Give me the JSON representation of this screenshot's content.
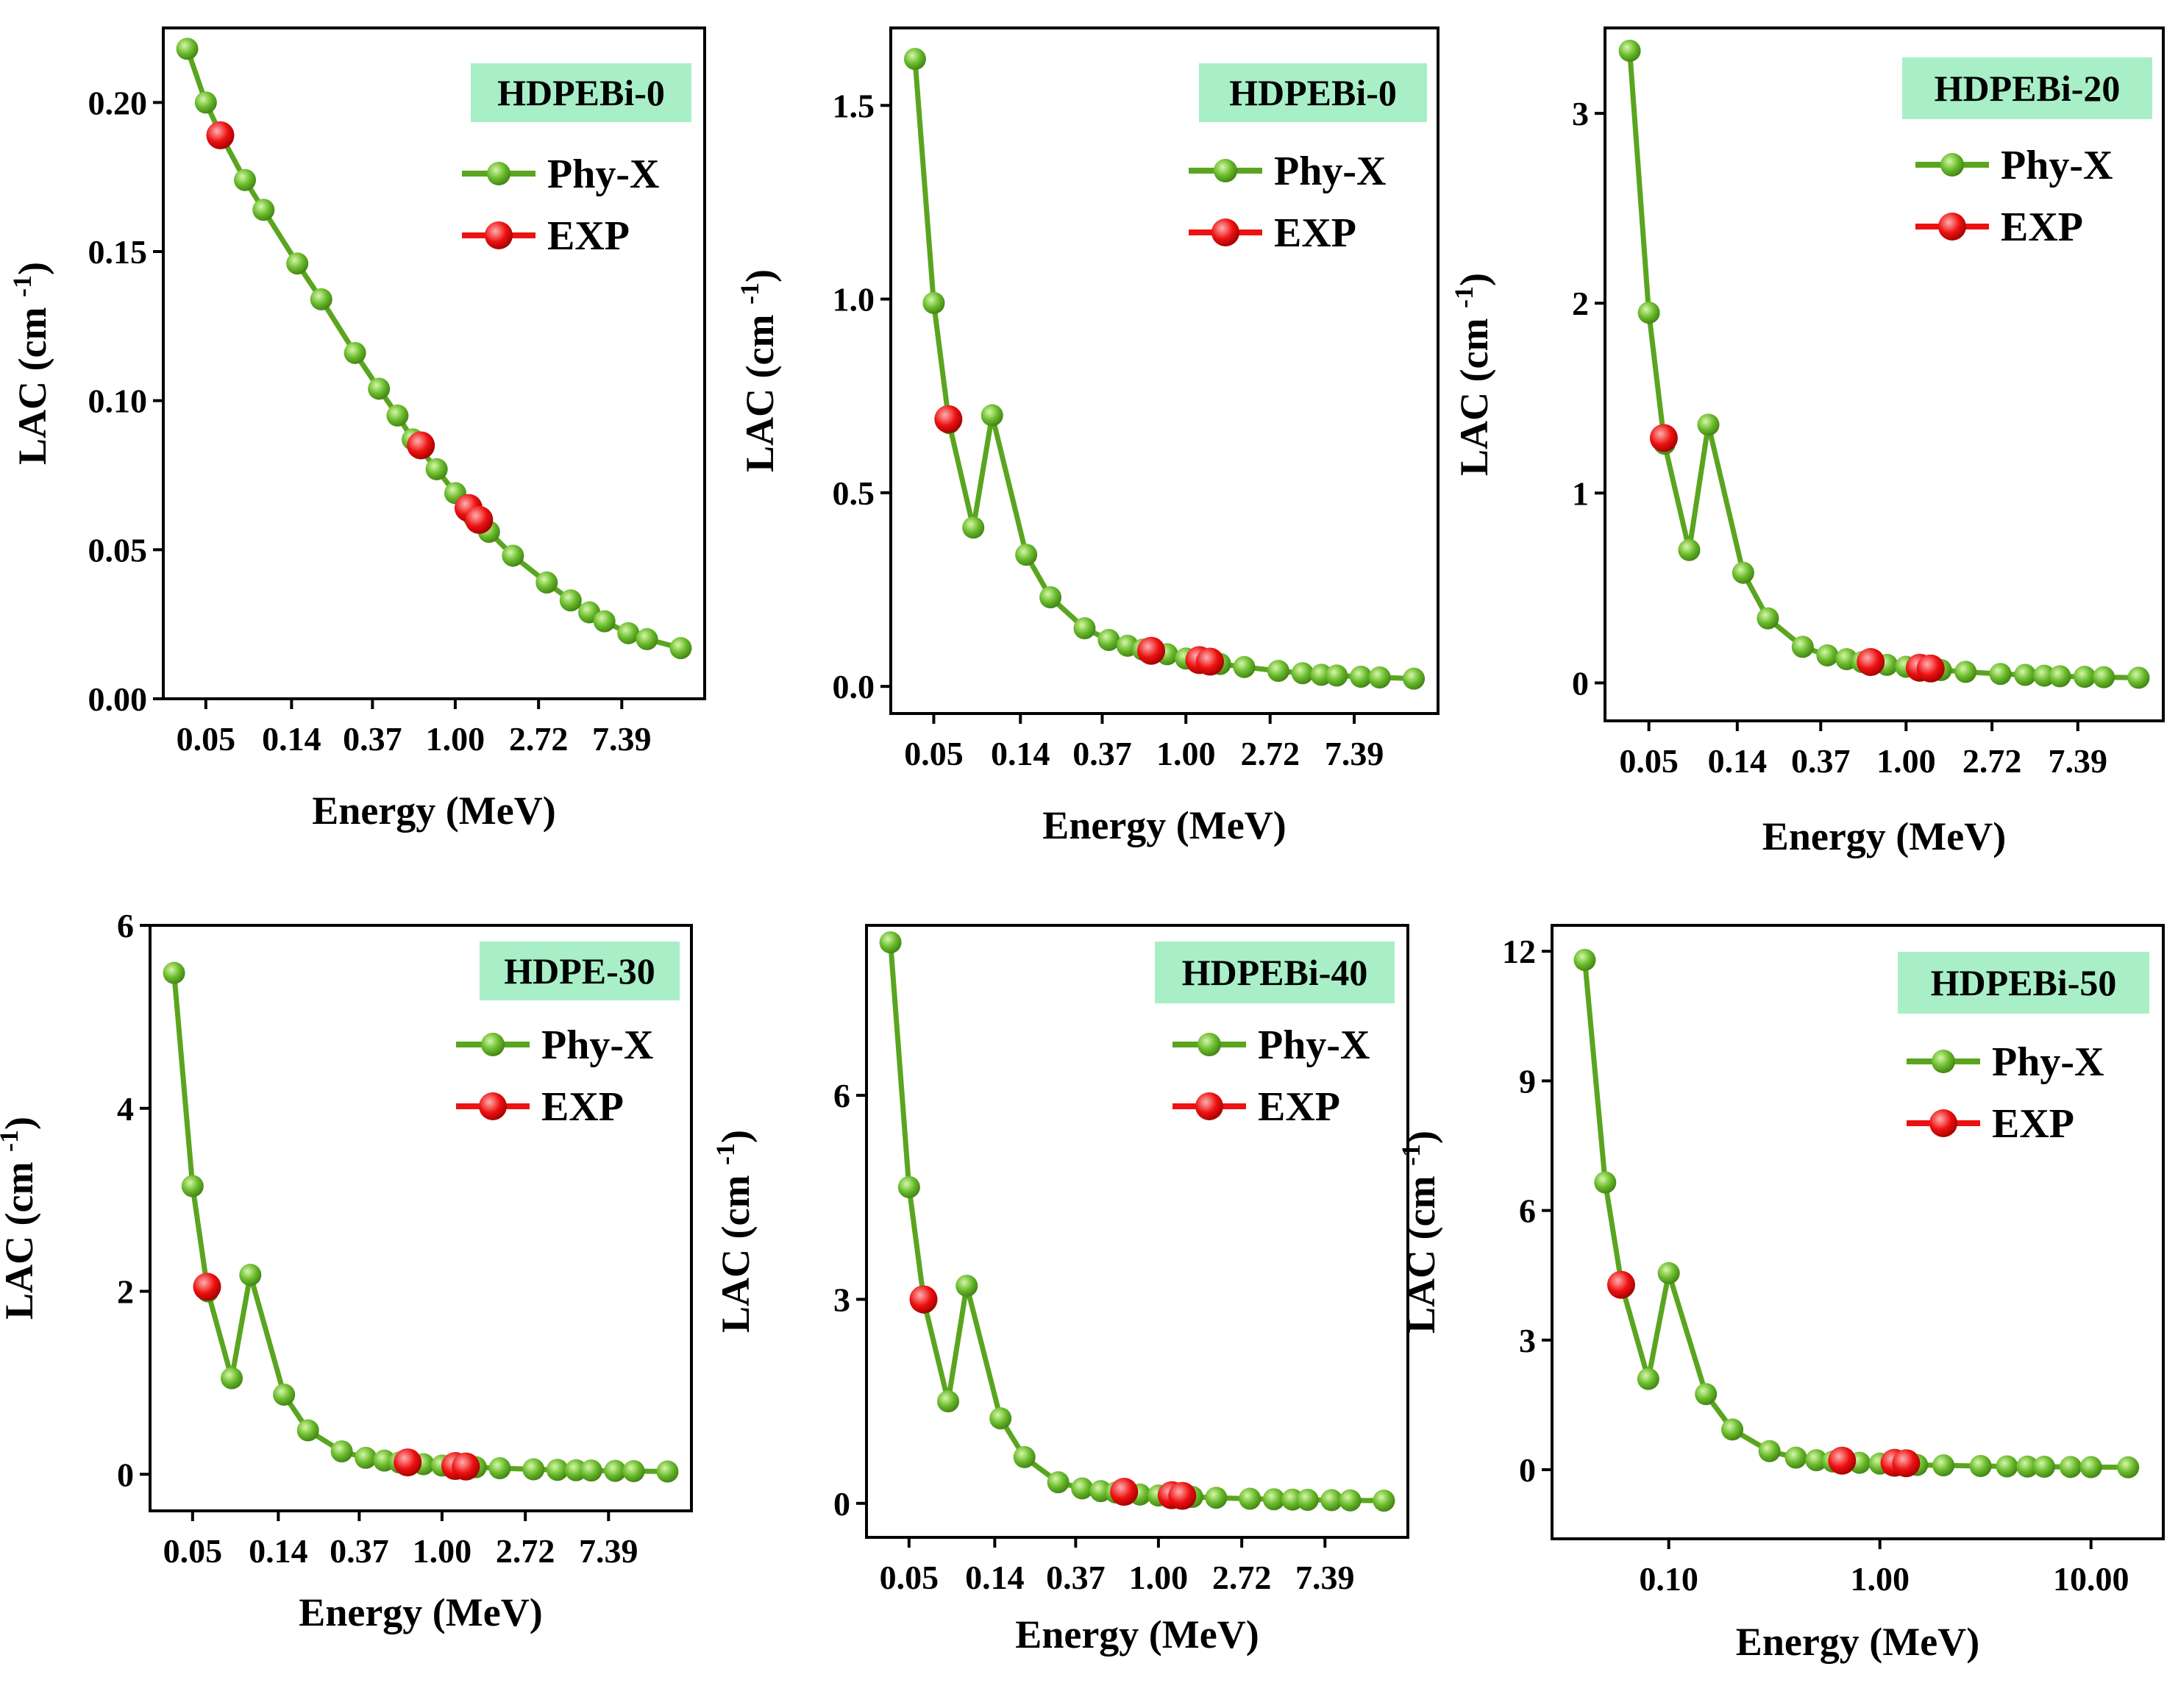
{
  "colors": {
    "series_line": "#5aa51f",
    "phy_marker": "#67b92a",
    "exp_marker": "#ee1111",
    "tag_bg": "#a8efc8",
    "axis": "#000000"
  },
  "chart_data": [
    {
      "type": "line",
      "title": "HDPEBi-0",
      "xlabel": "Energy (MeV)",
      "ylabel": "LAC (cm",
      "ylabel_sup": "-1",
      "ylabel_end": ")",
      "xscale": "log",
      "xlim": [
        0.03,
        20
      ],
      "ylim": [
        0,
        0.225
      ],
      "xticks": [
        0.05,
        0.14,
        0.37,
        1.0,
        2.72,
        7.39
      ],
      "xtick_labels": [
        "0.05",
        "0.14",
        "0.37",
        "1.00",
        "2.72",
        "7.39"
      ],
      "yticks": [
        0.0,
        0.05,
        0.1,
        0.15,
        0.2
      ],
      "ytick_labels": [
        "0.00",
        "0.05",
        "0.10",
        "0.15",
        "0.20"
      ],
      "legend": [
        "Phy-X",
        "EXP"
      ],
      "series": [
        {
          "name": "Phy-X",
          "x": [
            0.04,
            0.05,
            0.06,
            0.08,
            0.1,
            0.15,
            0.2,
            0.3,
            0.4,
            0.5,
            0.6,
            0.8,
            1.0,
            1.25,
            1.5,
            2.0,
            3.0,
            4.0,
            5.0,
            6.0,
            8.0,
            10.0,
            15.0
          ],
          "y": [
            0.218,
            0.2,
            0.189,
            0.174,
            0.164,
            0.146,
            0.134,
            0.116,
            0.104,
            0.095,
            0.087,
            0.077,
            0.069,
            0.061,
            0.056,
            0.048,
            0.039,
            0.033,
            0.029,
            0.026,
            0.022,
            0.02,
            0.017
          ]
        },
        {
          "name": "EXP",
          "x": [
            0.0595,
            0.662,
            1.173,
            1.332
          ],
          "y": [
            0.189,
            0.085,
            0.064,
            0.06
          ]
        }
      ]
    },
    {
      "type": "line",
      "title": "HDPEBi-0",
      "xlabel": "Energy (MeV)",
      "ylabel": "LAC (cm",
      "ylabel_sup": "-1",
      "ylabel_end": ")",
      "xscale": "log",
      "xlim": [
        0.03,
        20
      ],
      "ylim": [
        -0.07,
        1.7
      ],
      "xticks": [
        0.05,
        0.14,
        0.37,
        1.0,
        2.72,
        7.39
      ],
      "xtick_labels": [
        "0.05",
        "0.14",
        "0.37",
        "1.00",
        "2.72",
        "7.39"
      ],
      "yticks": [
        0.0,
        0.5,
        1.0,
        1.5
      ],
      "ytick_labels": [
        "0.0",
        "0.5",
        "1.0",
        "1.5"
      ],
      "legend": [
        "Phy-X",
        "EXP"
      ],
      "series": [
        {
          "name": "Phy-X",
          "x": [
            0.04,
            0.05,
            0.06,
            0.08,
            0.1,
            0.15,
            0.2,
            0.3,
            0.4,
            0.5,
            0.6,
            0.8,
            1.0,
            1.25,
            1.5,
            2.0,
            3.0,
            4.0,
            5.0,
            6.0,
            8.0,
            10.0,
            15.0
          ],
          "y": [
            1.62,
            0.99,
            0.68,
            0.41,
            0.7,
            0.34,
            0.23,
            0.15,
            0.12,
            0.105,
            0.095,
            0.083,
            0.072,
            0.064,
            0.058,
            0.05,
            0.04,
            0.034,
            0.03,
            0.028,
            0.025,
            0.023,
            0.02
          ]
        },
        {
          "name": "EXP",
          "x": [
            0.0595,
            0.662,
            1.173,
            1.332
          ],
          "y": [
            0.69,
            0.092,
            0.068,
            0.064
          ]
        }
      ]
    },
    {
      "type": "line",
      "title": "HDPEBi-20",
      "xlabel": "Energy (MeV)",
      "ylabel": "LAC (cm",
      "ylabel_sup": "-1",
      "ylabel_end": ")",
      "xscale": "log",
      "xlim": [
        0.03,
        20
      ],
      "ylim": [
        -0.2,
        3.45
      ],
      "xticks": [
        0.05,
        0.14,
        0.37,
        1.0,
        2.72,
        7.39
      ],
      "xtick_labels": [
        "0.05",
        "0.14",
        "0.37",
        "1.00",
        "2.72",
        "7.39"
      ],
      "yticks": [
        0,
        1,
        2,
        3
      ],
      "ytick_labels": [
        "0",
        "1",
        "2",
        "3"
      ],
      "legend": [
        "Phy-X",
        "EXP"
      ],
      "series": [
        {
          "name": "Phy-X",
          "x": [
            0.04,
            0.05,
            0.06,
            0.08,
            0.1,
            0.15,
            0.2,
            0.3,
            0.4,
            0.5,
            0.6,
            0.8,
            1.0,
            1.25,
            1.5,
            2.0,
            3.0,
            4.0,
            5.0,
            6.0,
            8.0,
            10.0,
            15.0
          ],
          "y": [
            3.33,
            1.95,
            1.26,
            0.7,
            1.36,
            0.58,
            0.34,
            0.19,
            0.145,
            0.125,
            0.11,
            0.095,
            0.085,
            0.075,
            0.068,
            0.058,
            0.047,
            0.042,
            0.038,
            0.035,
            0.032,
            0.03,
            0.027
          ]
        },
        {
          "name": "EXP",
          "x": [
            0.0595,
            0.662,
            1.173,
            1.332
          ],
          "y": [
            1.29,
            0.11,
            0.08,
            0.076
          ]
        }
      ]
    },
    {
      "type": "line",
      "title": "HDPE-30",
      "xlabel": "Energy (MeV)",
      "ylabel": "LAC (cm",
      "ylabel_sup": "-1",
      "ylabel_end": ")",
      "xscale": "log",
      "xlim": [
        0.03,
        20
      ],
      "ylim": [
        -0.4,
        6.0
      ],
      "xticks": [
        0.05,
        0.14,
        0.37,
        1.0,
        2.72,
        7.39
      ],
      "xtick_labels": [
        "0.05",
        "0.14",
        "0.37",
        "1.00",
        "2.72",
        "7.39"
      ],
      "yticks": [
        0,
        2,
        4,
        6
      ],
      "ytick_labels": [
        "0",
        "2",
        "4",
        "6"
      ],
      "legend": [
        "Phy-X",
        "EXP"
      ],
      "series": [
        {
          "name": "Phy-X",
          "x": [
            0.04,
            0.05,
            0.06,
            0.08,
            0.1,
            0.15,
            0.2,
            0.3,
            0.4,
            0.5,
            0.6,
            0.8,
            1.0,
            1.25,
            1.5,
            2.0,
            3.0,
            4.0,
            5.0,
            6.0,
            8.0,
            10.0,
            15.0
          ],
          "y": [
            5.48,
            3.15,
            2.0,
            1.05,
            2.18,
            0.87,
            0.48,
            0.25,
            0.18,
            0.15,
            0.13,
            0.11,
            0.095,
            0.085,
            0.077,
            0.066,
            0.054,
            0.048,
            0.044,
            0.041,
            0.037,
            0.034,
            0.03
          ]
        },
        {
          "name": "EXP",
          "x": [
            0.0595,
            0.662,
            1.173,
            1.332
          ],
          "y": [
            2.05,
            0.13,
            0.09,
            0.085
          ]
        }
      ]
    },
    {
      "type": "line",
      "title": "HDPEBi-40",
      "xlabel": "Energy (MeV)",
      "ylabel": "LAC (cm",
      "ylabel_sup": "-1",
      "ylabel_end": ")",
      "xscale": "log",
      "xlim": [
        0.03,
        20
      ],
      "ylim": [
        -0.5,
        8.5
      ],
      "xticks": [
        0.05,
        0.14,
        0.37,
        1.0,
        2.72,
        7.39
      ],
      "xtick_labels": [
        "0.05",
        "0.14",
        "0.37",
        "1.00",
        "2.72",
        "7.39"
      ],
      "yticks": [
        0,
        3,
        6
      ],
      "ytick_labels": [
        "0",
        "3",
        "6"
      ],
      "legend": [
        "Phy-X",
        "EXP"
      ],
      "series": [
        {
          "name": "Phy-X",
          "x": [
            0.04,
            0.05,
            0.06,
            0.08,
            0.1,
            0.15,
            0.2,
            0.3,
            0.4,
            0.5,
            0.6,
            0.8,
            1.0,
            1.25,
            1.5,
            2.0,
            3.0,
            4.0,
            5.0,
            6.0,
            8.0,
            10.0,
            15.0
          ],
          "y": [
            8.25,
            4.65,
            2.95,
            1.5,
            3.2,
            1.25,
            0.68,
            0.31,
            0.22,
            0.18,
            0.16,
            0.13,
            0.115,
            0.1,
            0.095,
            0.082,
            0.068,
            0.06,
            0.055,
            0.052,
            0.047,
            0.044,
            0.04
          ]
        },
        {
          "name": "EXP",
          "x": [
            0.0595,
            0.662,
            1.173,
            1.332
          ],
          "y": [
            3.0,
            0.17,
            0.12,
            0.11
          ]
        }
      ]
    },
    {
      "type": "line",
      "title": "HDPEBi-50",
      "xlabel": "Energy (MeV)",
      "ylabel": "LAC (cm",
      "ylabel_sup": "-1",
      "ylabel_end": ")",
      "xscale": "log",
      "xlim": [
        0.028,
        22
      ],
      "ylim": [
        -1.6,
        12.6
      ],
      "xticks": [
        0.1,
        1.0,
        10.0
      ],
      "xtick_labels": [
        "0.10",
        "1.00",
        "10.00"
      ],
      "yticks": [
        0,
        3,
        6,
        9,
        12
      ],
      "ytick_labels": [
        "0",
        "3",
        "6",
        "9",
        "12"
      ],
      "legend": [
        "Phy-X",
        "EXP"
      ],
      "series": [
        {
          "name": "Phy-X",
          "x": [
            0.04,
            0.05,
            0.06,
            0.08,
            0.1,
            0.15,
            0.2,
            0.3,
            0.4,
            0.5,
            0.6,
            0.8,
            1.0,
            1.25,
            1.5,
            2.0,
            3.0,
            4.0,
            5.0,
            6.0,
            8.0,
            10.0,
            15.0
          ],
          "y": [
            11.8,
            6.65,
            4.25,
            2.1,
            4.55,
            1.75,
            0.93,
            0.43,
            0.28,
            0.22,
            0.19,
            0.16,
            0.14,
            0.12,
            0.11,
            0.1,
            0.085,
            0.077,
            0.072,
            0.068,
            0.063,
            0.06,
            0.055
          ]
        },
        {
          "name": "EXP",
          "x": [
            0.0595,
            0.662,
            1.173,
            1.332
          ],
          "y": [
            4.28,
            0.21,
            0.16,
            0.15
          ]
        }
      ]
    }
  ]
}
